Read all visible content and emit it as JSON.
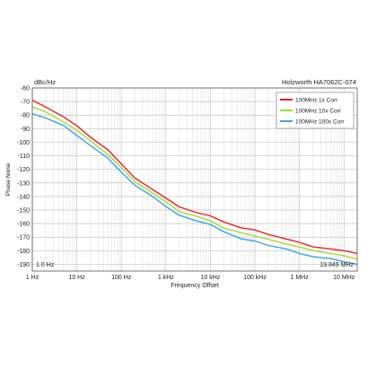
{
  "chart_data": {
    "type": "line",
    "title_left": "dBc/Hz",
    "title_right": "Holzworth HA7062C-074",
    "xlabel": "Frequency Offset",
    "ylabel": "Phase Noise",
    "xscale": "log",
    "xlim": [
      1,
      19849000
    ],
    "ylim": [
      -195,
      -60
    ],
    "grid": true,
    "legend_position": "top-right",
    "x_tick_labels": [
      "1 Hz",
      "10 Hz",
      "100 Hz",
      "1 kHz",
      "10 kHz",
      "100 kHz",
      "1 MHz",
      "10 MHz"
    ],
    "x_tick_values": [
      1,
      10,
      100,
      1000,
      10000,
      100000,
      1000000,
      10000000
    ],
    "y_ticks": [
      -60,
      -70,
      -80,
      -90,
      -100,
      -110,
      -120,
      -130,
      -140,
      -150,
      -160,
      -170,
      -180,
      -190
    ],
    "corner_left": "1.0 Hz",
    "corner_right": "19.849 MHz",
    "x": [
      1,
      2,
      5,
      10,
      20,
      50,
      100,
      200,
      500,
      1000,
      2000,
      5000,
      10000,
      20000,
      50000,
      100000,
      200000,
      500000,
      1000000,
      2000000,
      5000000,
      10000000,
      19849000
    ],
    "series": [
      {
        "name": "100MHz 1x Corr",
        "color": "#e8202a",
        "values": [
          -69,
          -74,
          -81,
          -88,
          -96,
          -106,
          -116,
          -126,
          -135,
          -141,
          -148,
          -152,
          -154,
          -159,
          -163,
          -165,
          -168,
          -171,
          -174,
          -177,
          -179,
          -180,
          -182
        ]
      },
      {
        "name": "100MHz 10x Corr",
        "color": "#a6dc2c",
        "values": [
          -74,
          -78,
          -85,
          -91,
          -99,
          -109,
          -119,
          -129,
          -137,
          -144,
          -151,
          -155,
          -158,
          -163,
          -167,
          -169,
          -172,
          -175,
          -177,
          -180,
          -182,
          -184,
          -186
        ]
      },
      {
        "name": "100MHz 100x Corr",
        "color": "#39a3e6",
        "values": [
          -79,
          -82,
          -88,
          -95,
          -102,
          -112,
          -122,
          -132,
          -140,
          -147,
          -154,
          -158,
          -161,
          -166,
          -171,
          -173,
          -176,
          -179,
          -182,
          -184,
          -186,
          -188,
          -190
        ]
      }
    ]
  }
}
